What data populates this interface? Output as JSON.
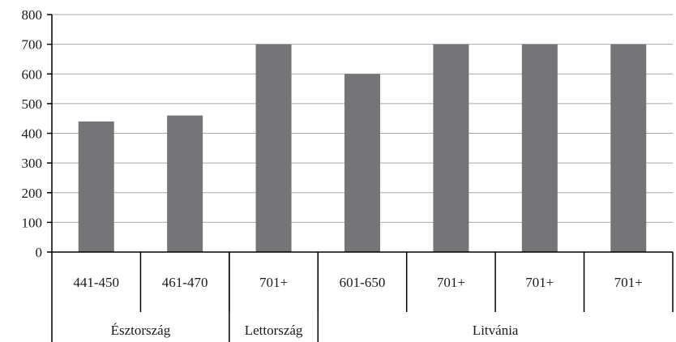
{
  "chart_data": {
    "type": "bar",
    "categories": [
      "441-450",
      "461-470",
      "701+",
      "601-650",
      "701+",
      "701+",
      "701+"
    ],
    "groups": [
      {
        "label": "Észtország",
        "count": 2
      },
      {
        "label": "Lettország",
        "count": 1
      },
      {
        "label": "Litvánia",
        "count": 4
      }
    ],
    "values": [
      440,
      460,
      700,
      600,
      700,
      700,
      700
    ],
    "yticks": [
      "0",
      "100",
      "200",
      "300",
      "400",
      "500",
      "600",
      "700",
      "800"
    ],
    "ylim": [
      0,
      800
    ],
    "grid": true,
    "bar_color": "#757577",
    "title": "",
    "xlabel": "",
    "ylabel": ""
  }
}
